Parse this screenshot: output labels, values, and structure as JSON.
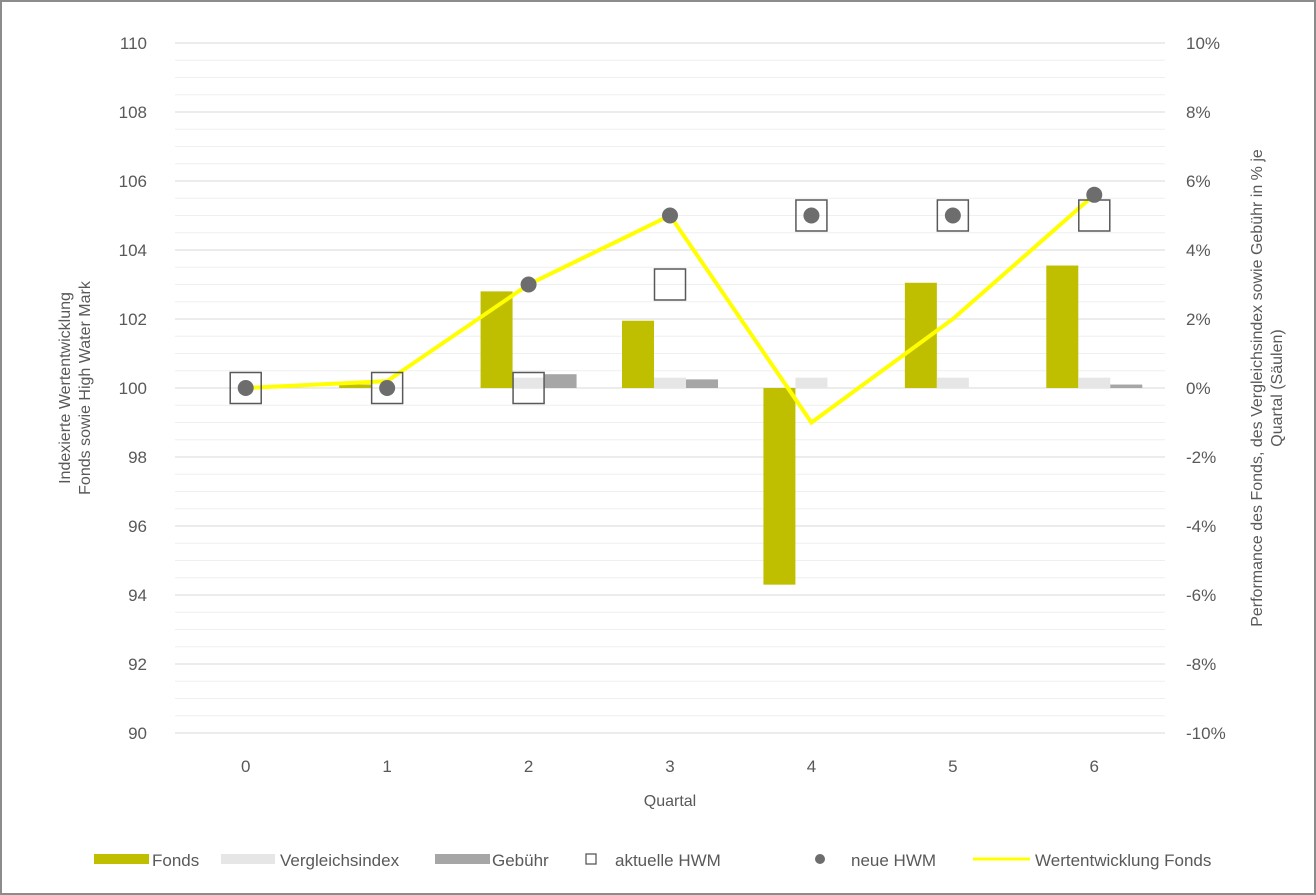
{
  "chart_data": {
    "type": "bar",
    "title": "",
    "xlabel": "Quartal",
    "ylabel_left": "Indexierte Wertentwicklung Fonds sowie High Water Mark",
    "ylabel_left_lines": [
      "Indexierte Wertentwicklung",
      "Fonds sowie High Water Mark"
    ],
    "ylabel_right": "Performance des Fonds, des Vergleichsindex sowie Gebühr in % je Quartal (Säulen)",
    "ylabel_right_lines": [
      "Performance des Fonds,  des  Vergleichsindex sowie Gebühr in % je",
      "Quartal (Säulen)"
    ],
    "categories": [
      "0",
      "1",
      "2",
      "3",
      "4",
      "5",
      "6"
    ],
    "ylim_left": [
      90,
      110
    ],
    "ylim_right": [
      -10,
      10
    ],
    "yticks_left": [
      "90",
      "92",
      "94",
      "96",
      "98",
      "100",
      "102",
      "104",
      "106",
      "108",
      "110"
    ],
    "yticks_right": [
      "-10%",
      "-8%",
      "-6%",
      "-4%",
      "-2%",
      "0%",
      "2%",
      "4%",
      "6%",
      "8%",
      "10%"
    ],
    "grid": true,
    "legend_position": "bottom",
    "bar_series": [
      {
        "name": "Fonds",
        "color": "#bfbf00",
        "values": [
          0,
          0.1,
          2.8,
          1.95,
          -5.7,
          3.05,
          3.55
        ]
      },
      {
        "name": "Vergleichsindex",
        "color": "#e6e6e6",
        "values": [
          0,
          0,
          0.3,
          0.3,
          0.3,
          0.3,
          0.3
        ]
      },
      {
        "name": "Gebühr",
        "color": "#a6a6a6",
        "values": [
          0,
          0,
          0.4,
          0.25,
          0,
          0,
          0.1
        ]
      }
    ],
    "marker_series": [
      {
        "name": "aktuelle HWM",
        "marker": "square",
        "color": "#595959",
        "values": [
          100,
          100,
          100,
          103,
          105,
          105,
          105
        ]
      },
      {
        "name": "neue HWM",
        "marker": "circle",
        "color": "#6d6d6d",
        "values": [
          100,
          100,
          103,
          105,
          105,
          105,
          105.6
        ]
      }
    ],
    "line_series": [
      {
        "name": "Wertentwicklung Fonds",
        "color": "#ffff00",
        "values": [
          100,
          100.2,
          103,
          105,
          99,
          102,
          105.6
        ]
      }
    ]
  }
}
